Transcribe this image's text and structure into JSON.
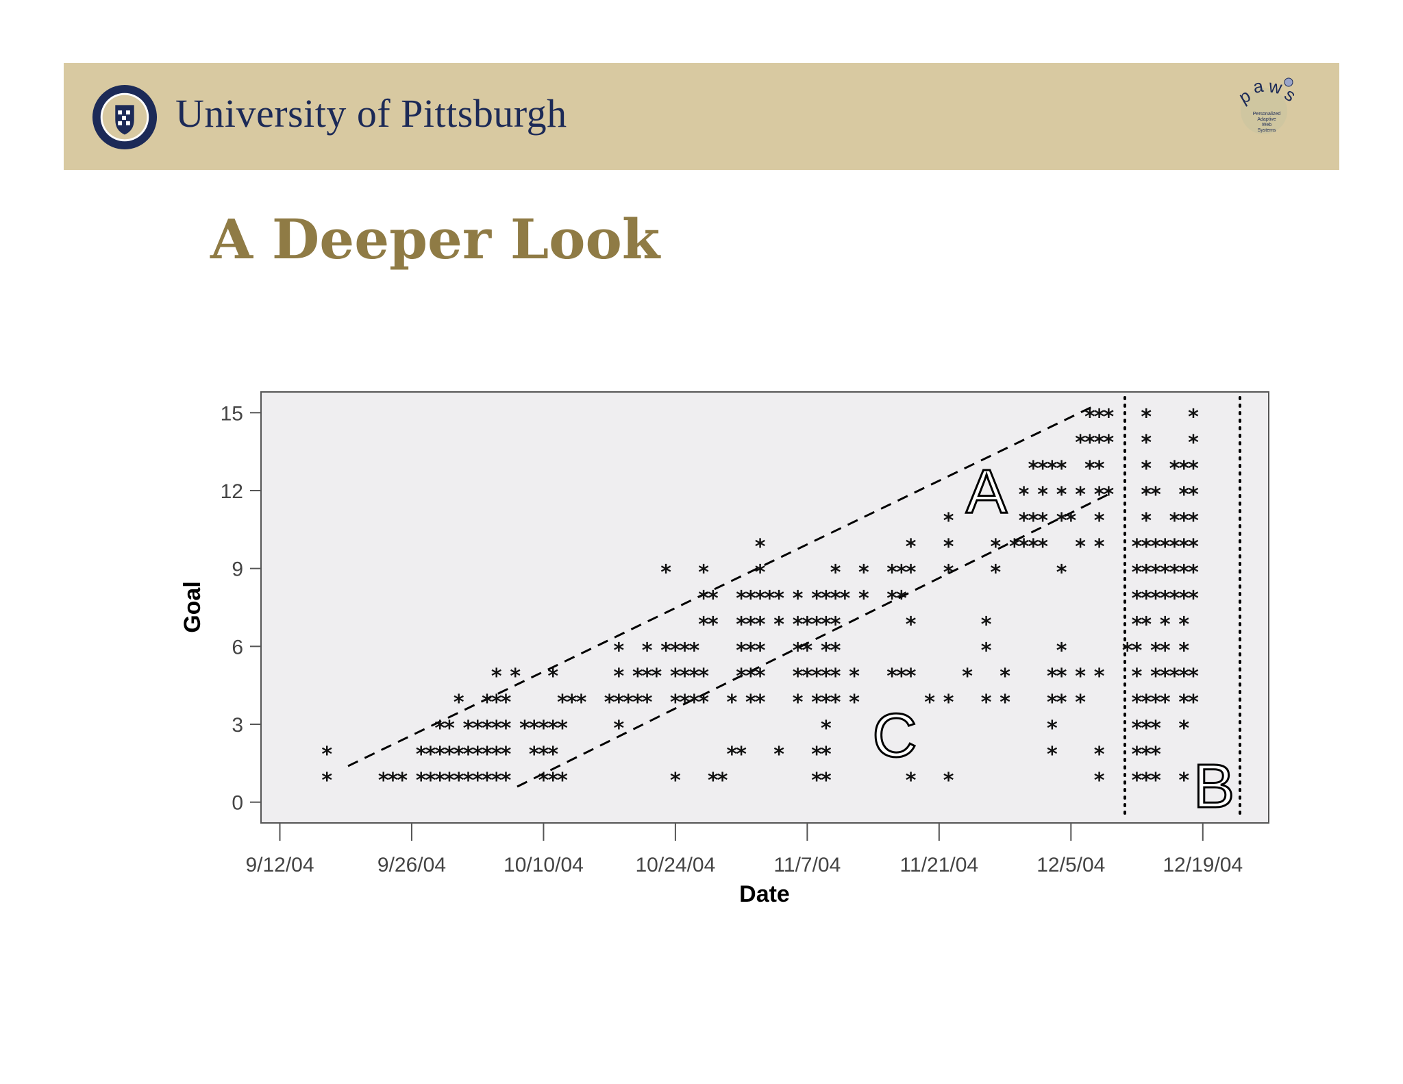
{
  "header": {
    "university_name": "University of Pittsburgh",
    "seal_text": "UNIVERSITY OF PITTSBURGH",
    "paws_logo_text": "paws",
    "paws_logo_subtext": "Personalized Adaptive Web Systems",
    "background_color": "#d8c9a1",
    "name_color": "#1c2a57"
  },
  "slide": {
    "title": "A Deeper Look",
    "title_color": "#8f7b45"
  },
  "chart_data": {
    "type": "scatter",
    "title": "",
    "xlabel": "Date",
    "ylabel": "Goal",
    "x_scale": "date",
    "xlim": [
      "2004-09-10",
      "2004-12-26"
    ],
    "ylim": [
      -0.8,
      15.8
    ],
    "x_ticks": [
      "9/12/04",
      "9/26/04",
      "10/10/04",
      "10/24/04",
      "11/7/04",
      "11/21/04",
      "12/5/04",
      "12/19/04"
    ],
    "y_ticks": [
      0,
      3,
      6,
      9,
      12,
      15
    ],
    "grid": false,
    "legend": "none",
    "marker": "*",
    "plot_background": "#efeef0",
    "annotations": [
      "A",
      "B",
      "C"
    ],
    "points": [
      {
        "x": "2004-09-17",
        "y": 2
      },
      {
        "x": "2004-09-17",
        "y": 1
      },
      {
        "x": "2004-09-23",
        "y": 1
      },
      {
        "x": "2004-09-24",
        "y": 1
      },
      {
        "x": "2004-09-25",
        "y": 1
      },
      {
        "x": "2004-09-27",
        "y": 1
      },
      {
        "x": "2004-09-28",
        "y": 1
      },
      {
        "x": "2004-09-29",
        "y": 1
      },
      {
        "x": "2004-09-30",
        "y": 1
      },
      {
        "x": "2004-10-01",
        "y": 1
      },
      {
        "x": "2004-10-02",
        "y": 1
      },
      {
        "x": "2004-10-03",
        "y": 1
      },
      {
        "x": "2004-10-04",
        "y": 1
      },
      {
        "x": "2004-10-05",
        "y": 1
      },
      {
        "x": "2004-10-06",
        "y": 1
      },
      {
        "x": "2004-09-27",
        "y": 2
      },
      {
        "x": "2004-09-28",
        "y": 2
      },
      {
        "x": "2004-09-29",
        "y": 2
      },
      {
        "x": "2004-09-30",
        "y": 2
      },
      {
        "x": "2004-10-01",
        "y": 2
      },
      {
        "x": "2004-10-02",
        "y": 2
      },
      {
        "x": "2004-10-03",
        "y": 2
      },
      {
        "x": "2004-10-04",
        "y": 2
      },
      {
        "x": "2004-10-05",
        "y": 2
      },
      {
        "x": "2004-10-06",
        "y": 2
      },
      {
        "x": "2004-09-29",
        "y": 3
      },
      {
        "x": "2004-09-30",
        "y": 3
      },
      {
        "x": "2004-10-02",
        "y": 3
      },
      {
        "x": "2004-10-03",
        "y": 3
      },
      {
        "x": "2004-10-04",
        "y": 3
      },
      {
        "x": "2004-10-05",
        "y": 3
      },
      {
        "x": "2004-10-06",
        "y": 3
      },
      {
        "x": "2004-10-08",
        "y": 3
      },
      {
        "x": "2004-10-09",
        "y": 3
      },
      {
        "x": "2004-10-10",
        "y": 3
      },
      {
        "x": "2004-10-11",
        "y": 3
      },
      {
        "x": "2004-10-12",
        "y": 3
      },
      {
        "x": "2004-10-01",
        "y": 4
      },
      {
        "x": "2004-10-04",
        "y": 4
      },
      {
        "x": "2004-10-05",
        "y": 4
      },
      {
        "x": "2004-10-06",
        "y": 4
      },
      {
        "x": "2004-10-05",
        "y": 5
      },
      {
        "x": "2004-10-07",
        "y": 5
      },
      {
        "x": "2004-10-11",
        "y": 5
      },
      {
        "x": "2004-10-09",
        "y": 2
      },
      {
        "x": "2004-10-10",
        "y": 2
      },
      {
        "x": "2004-10-11",
        "y": 2
      },
      {
        "x": "2004-10-10",
        "y": 1
      },
      {
        "x": "2004-10-11",
        "y": 1
      },
      {
        "x": "2004-10-12",
        "y": 1
      },
      {
        "x": "2004-10-12",
        "y": 4
      },
      {
        "x": "2004-10-13",
        "y": 4
      },
      {
        "x": "2004-10-14",
        "y": 4
      },
      {
        "x": "2004-10-18",
        "y": 6
      },
      {
        "x": "2004-10-21",
        "y": 6
      },
      {
        "x": "2004-10-23",
        "y": 6
      },
      {
        "x": "2004-10-24",
        "y": 6
      },
      {
        "x": "2004-10-25",
        "y": 6
      },
      {
        "x": "2004-10-26",
        "y": 6
      },
      {
        "x": "2004-10-18",
        "y": 5
      },
      {
        "x": "2004-10-20",
        "y": 5
      },
      {
        "x": "2004-10-21",
        "y": 5
      },
      {
        "x": "2004-10-22",
        "y": 5
      },
      {
        "x": "2004-10-24",
        "y": 5
      },
      {
        "x": "2004-10-25",
        "y": 5
      },
      {
        "x": "2004-10-26",
        "y": 5
      },
      {
        "x": "2004-10-27",
        "y": 5
      },
      {
        "x": "2004-10-17",
        "y": 4
      },
      {
        "x": "2004-10-18",
        "y": 4
      },
      {
        "x": "2004-10-19",
        "y": 4
      },
      {
        "x": "2004-10-20",
        "y": 4
      },
      {
        "x": "2004-10-21",
        "y": 4
      },
      {
        "x": "2004-10-24",
        "y": 4
      },
      {
        "x": "2004-10-25",
        "y": 4
      },
      {
        "x": "2004-10-26",
        "y": 4
      },
      {
        "x": "2004-10-27",
        "y": 4
      },
      {
        "x": "2004-10-18",
        "y": 3
      },
      {
        "x": "2004-10-24",
        "y": 1
      },
      {
        "x": "2004-10-28",
        "y": 1
      },
      {
        "x": "2004-10-29",
        "y": 1
      },
      {
        "x": "2004-10-23",
        "y": 9
      },
      {
        "x": "2004-10-27",
        "y": 9
      },
      {
        "x": "2004-11-02",
        "y": 9
      },
      {
        "x": "2004-11-02",
        "y": 10
      },
      {
        "x": "2004-10-27",
        "y": 8
      },
      {
        "x": "2004-10-28",
        "y": 8
      },
      {
        "x": "2004-10-27",
        "y": 7
      },
      {
        "x": "2004-10-28",
        "y": 7
      },
      {
        "x": "2004-10-31",
        "y": 8
      },
      {
        "x": "2004-11-01",
        "y": 8
      },
      {
        "x": "2004-11-02",
        "y": 8
      },
      {
        "x": "2004-11-03",
        "y": 8
      },
      {
        "x": "2004-11-04",
        "y": 8
      },
      {
        "x": "2004-11-06",
        "y": 8
      },
      {
        "x": "2004-10-31",
        "y": 7
      },
      {
        "x": "2004-11-01",
        "y": 7
      },
      {
        "x": "2004-11-02",
        "y": 7
      },
      {
        "x": "2004-11-04",
        "y": 7
      },
      {
        "x": "2004-10-31",
        "y": 6
      },
      {
        "x": "2004-11-01",
        "y": 6
      },
      {
        "x": "2004-11-02",
        "y": 6
      },
      {
        "x": "2004-10-31",
        "y": 5
      },
      {
        "x": "2004-11-01",
        "y": 5
      },
      {
        "x": "2004-11-02",
        "y": 5
      },
      {
        "x": "2004-10-30",
        "y": 4
      },
      {
        "x": "2004-11-01",
        "y": 4
      },
      {
        "x": "2004-11-02",
        "y": 4
      },
      {
        "x": "2004-10-30",
        "y": 2
      },
      {
        "x": "2004-10-31",
        "y": 2
      },
      {
        "x": "2004-11-04",
        "y": 2
      },
      {
        "x": "2004-11-08",
        "y": 8
      },
      {
        "x": "2004-11-09",
        "y": 8
      },
      {
        "x": "2004-11-10",
        "y": 8
      },
      {
        "x": "2004-11-11",
        "y": 8
      },
      {
        "x": "2004-11-06",
        "y": 7
      },
      {
        "x": "2004-11-07",
        "y": 7
      },
      {
        "x": "2004-11-08",
        "y": 7
      },
      {
        "x": "2004-11-09",
        "y": 7
      },
      {
        "x": "2004-11-10",
        "y": 7
      },
      {
        "x": "2004-11-06",
        "y": 6
      },
      {
        "x": "2004-11-07",
        "y": 6
      },
      {
        "x": "2004-11-09",
        "y": 6
      },
      {
        "x": "2004-11-10",
        "y": 6
      },
      {
        "x": "2004-11-06",
        "y": 5
      },
      {
        "x": "2004-11-07",
        "y": 5
      },
      {
        "x": "2004-11-08",
        "y": 5
      },
      {
        "x": "2004-11-09",
        "y": 5
      },
      {
        "x": "2004-11-10",
        "y": 5
      },
      {
        "x": "2004-11-12",
        "y": 5
      },
      {
        "x": "2004-11-06",
        "y": 4
      },
      {
        "x": "2004-11-08",
        "y": 4
      },
      {
        "x": "2004-11-09",
        "y": 4
      },
      {
        "x": "2004-11-10",
        "y": 4
      },
      {
        "x": "2004-11-12",
        "y": 4
      },
      {
        "x": "2004-11-09",
        "y": 3
      },
      {
        "x": "2004-11-08",
        "y": 2
      },
      {
        "x": "2004-11-09",
        "y": 2
      },
      {
        "x": "2004-11-08",
        "y": 1
      },
      {
        "x": "2004-11-09",
        "y": 1
      },
      {
        "x": "2004-11-10",
        "y": 9
      },
      {
        "x": "2004-11-13",
        "y": 9
      },
      {
        "x": "2004-11-13",
        "y": 8
      },
      {
        "x": "2004-11-16",
        "y": 9
      },
      {
        "x": "2004-11-17",
        "y": 9
      },
      {
        "x": "2004-11-18",
        "y": 9
      },
      {
        "x": "2004-11-16",
        "y": 8
      },
      {
        "x": "2004-11-17",
        "y": 8
      },
      {
        "x": "2004-11-18",
        "y": 7
      },
      {
        "x": "2004-11-18",
        "y": 10
      },
      {
        "x": "2004-11-16",
        "y": 5
      },
      {
        "x": "2004-11-17",
        "y": 5
      },
      {
        "x": "2004-11-18",
        "y": 5
      },
      {
        "x": "2004-11-20",
        "y": 4
      },
      {
        "x": "2004-11-22",
        "y": 4
      },
      {
        "x": "2004-11-18",
        "y": 1
      },
      {
        "x": "2004-11-22",
        "y": 1
      },
      {
        "x": "2004-11-22",
        "y": 11
      },
      {
        "x": "2004-11-22",
        "y": 10
      },
      {
        "x": "2004-11-22",
        "y": 9
      },
      {
        "x": "2004-11-24",
        "y": 5
      },
      {
        "x": "2004-11-26",
        "y": 7
      },
      {
        "x": "2004-11-26",
        "y": 6
      },
      {
        "x": "2004-11-26",
        "y": 4
      },
      {
        "x": "2004-11-28",
        "y": 4
      },
      {
        "x": "2004-11-27",
        "y": 10
      },
      {
        "x": "2004-11-27",
        "y": 9
      },
      {
        "x": "2004-11-28",
        "y": 5
      },
      {
        "x": "2004-11-29",
        "y": 10
      },
      {
        "x": "2004-11-30",
        "y": 10
      },
      {
        "x": "2004-12-01",
        "y": 10
      },
      {
        "x": "2004-12-02",
        "y": 10
      },
      {
        "x": "2004-11-30",
        "y": 12
      },
      {
        "x": "2004-12-02",
        "y": 12
      },
      {
        "x": "2004-12-04",
        "y": 12
      },
      {
        "x": "2004-12-06",
        "y": 12
      },
      {
        "x": "2004-12-08",
        "y": 12
      },
      {
        "x": "2004-12-09",
        "y": 12
      },
      {
        "x": "2004-11-30",
        "y": 11
      },
      {
        "x": "2004-12-01",
        "y": 11
      },
      {
        "x": "2004-12-02",
        "y": 11
      },
      {
        "x": "2004-12-04",
        "y": 11
      },
      {
        "x": "2004-12-05",
        "y": 11
      },
      {
        "x": "2004-12-08",
        "y": 11
      },
      {
        "x": "2004-12-01",
        "y": 13
      },
      {
        "x": "2004-12-02",
        "y": 13
      },
      {
        "x": "2004-12-03",
        "y": 13
      },
      {
        "x": "2004-12-04",
        "y": 13
      },
      {
        "x": "2004-12-07",
        "y": 13
      },
      {
        "x": "2004-12-08",
        "y": 13
      },
      {
        "x": "2004-12-06",
        "y": 14
      },
      {
        "x": "2004-12-07",
        "y": 14
      },
      {
        "x": "2004-12-08",
        "y": 14
      },
      {
        "x": "2004-12-09",
        "y": 14
      },
      {
        "x": "2004-12-07",
        "y": 15
      },
      {
        "x": "2004-12-08",
        "y": 15
      },
      {
        "x": "2004-12-09",
        "y": 15
      },
      {
        "x": "2004-12-06",
        "y": 10
      },
      {
        "x": "2004-12-08",
        "y": 10
      },
      {
        "x": "2004-12-04",
        "y": 9
      },
      {
        "x": "2004-12-04",
        "y": 6
      },
      {
        "x": "2004-12-03",
        "y": 5
      },
      {
        "x": "2004-12-04",
        "y": 5
      },
      {
        "x": "2004-12-06",
        "y": 5
      },
      {
        "x": "2004-12-08",
        "y": 5
      },
      {
        "x": "2004-12-03",
        "y": 4
      },
      {
        "x": "2004-12-04",
        "y": 4
      },
      {
        "x": "2004-12-06",
        "y": 4
      },
      {
        "x": "2004-12-03",
        "y": 3
      },
      {
        "x": "2004-12-03",
        "y": 2
      },
      {
        "x": "2004-12-08",
        "y": 2
      },
      {
        "x": "2004-12-08",
        "y": 1
      },
      {
        "x": "2004-12-13",
        "y": 15
      },
      {
        "x": "2004-12-13",
        "y": 14
      },
      {
        "x": "2004-12-13",
        "y": 13
      },
      {
        "x": "2004-12-13",
        "y": 11
      },
      {
        "x": "2004-12-18",
        "y": 15
      },
      {
        "x": "2004-12-18",
        "y": 14
      },
      {
        "x": "2004-12-16",
        "y": 13
      },
      {
        "x": "2004-12-17",
        "y": 13
      },
      {
        "x": "2004-12-18",
        "y": 13
      },
      {
        "x": "2004-12-13",
        "y": 12
      },
      {
        "x": "2004-12-14",
        "y": 12
      },
      {
        "x": "2004-12-17",
        "y": 12
      },
      {
        "x": "2004-12-18",
        "y": 12
      },
      {
        "x": "2004-12-16",
        "y": 11
      },
      {
        "x": "2004-12-17",
        "y": 11
      },
      {
        "x": "2004-12-18",
        "y": 11
      },
      {
        "x": "2004-12-12",
        "y": 10
      },
      {
        "x": "2004-12-13",
        "y": 10
      },
      {
        "x": "2004-12-14",
        "y": 10
      },
      {
        "x": "2004-12-15",
        "y": 10
      },
      {
        "x": "2004-12-16",
        "y": 10
      },
      {
        "x": "2004-12-17",
        "y": 10
      },
      {
        "x": "2004-12-18",
        "y": 10
      },
      {
        "x": "2004-12-12",
        "y": 9
      },
      {
        "x": "2004-12-13",
        "y": 9
      },
      {
        "x": "2004-12-14",
        "y": 9
      },
      {
        "x": "2004-12-15",
        "y": 9
      },
      {
        "x": "2004-12-16",
        "y": 9
      },
      {
        "x": "2004-12-17",
        "y": 9
      },
      {
        "x": "2004-12-18",
        "y": 9
      },
      {
        "x": "2004-12-12",
        "y": 8
      },
      {
        "x": "2004-12-13",
        "y": 8
      },
      {
        "x": "2004-12-14",
        "y": 8
      },
      {
        "x": "2004-12-15",
        "y": 8
      },
      {
        "x": "2004-12-16",
        "y": 8
      },
      {
        "x": "2004-12-17",
        "y": 8
      },
      {
        "x": "2004-12-18",
        "y": 8
      },
      {
        "x": "2004-12-12",
        "y": 7
      },
      {
        "x": "2004-12-13",
        "y": 7
      },
      {
        "x": "2004-12-15",
        "y": 7
      },
      {
        "x": "2004-12-17",
        "y": 7
      },
      {
        "x": "2004-12-11",
        "y": 6
      },
      {
        "x": "2004-12-12",
        "y": 6
      },
      {
        "x": "2004-12-14",
        "y": 6
      },
      {
        "x": "2004-12-15",
        "y": 6
      },
      {
        "x": "2004-12-17",
        "y": 6
      },
      {
        "x": "2004-12-12",
        "y": 5
      },
      {
        "x": "2004-12-14",
        "y": 5
      },
      {
        "x": "2004-12-15",
        "y": 5
      },
      {
        "x": "2004-12-16",
        "y": 5
      },
      {
        "x": "2004-12-17",
        "y": 5
      },
      {
        "x": "2004-12-18",
        "y": 5
      },
      {
        "x": "2004-12-12",
        "y": 4
      },
      {
        "x": "2004-12-13",
        "y": 4
      },
      {
        "x": "2004-12-14",
        "y": 4
      },
      {
        "x": "2004-12-15",
        "y": 4
      },
      {
        "x": "2004-12-17",
        "y": 4
      },
      {
        "x": "2004-12-18",
        "y": 4
      },
      {
        "x": "2004-12-12",
        "y": 3
      },
      {
        "x": "2004-12-13",
        "y": 3
      },
      {
        "x": "2004-12-14",
        "y": 3
      },
      {
        "x": "2004-12-17",
        "y": 3
      },
      {
        "x": "2004-12-12",
        "y": 2
      },
      {
        "x": "2004-12-13",
        "y": 2
      },
      {
        "x": "2004-12-14",
        "y": 2
      },
      {
        "x": "2004-12-12",
        "y": 1
      },
      {
        "x": "2004-12-13",
        "y": 1
      },
      {
        "x": "2004-12-14",
        "y": 1
      },
      {
        "x": "2004-12-17",
        "y": 1
      }
    ]
  }
}
